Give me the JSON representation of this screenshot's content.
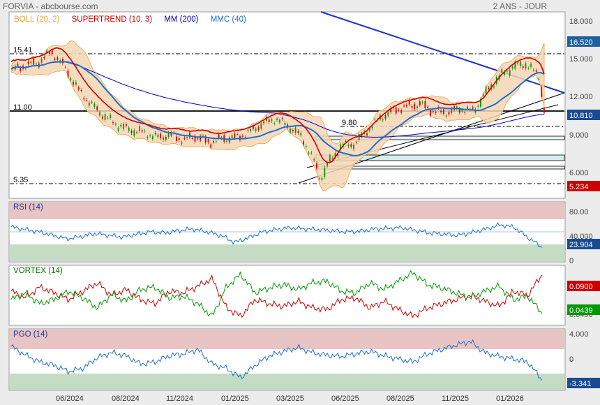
{
  "header": {
    "title": "FORVIA - abcbourse.com",
    "period": "2 ANS - JOUR"
  },
  "legend": {
    "boll": "BOLL (20, 2)",
    "supertrend": "SUPERTREND (10, 3)",
    "mm": "MM (200)",
    "mmc": "MMC (40)"
  },
  "colors": {
    "boll": "#f0a040",
    "supertrend": "#cc0000",
    "mm": "#0000cc",
    "mmc": "#1e6ed0",
    "price_up": "#009900",
    "price_down": "#cc0000",
    "overbought_zone": "#e8c4c4",
    "oversold_zone": "#c4dcc4",
    "badge_blue": "#2060a0",
    "badge_red": "#cc0000",
    "badge_green": "#009900",
    "badge_dark": "#1a4a90"
  },
  "axis": {
    "price_ticks": [
      "18.000",
      "15.000",
      "12.000",
      "9.000",
      "6.000"
    ],
    "rsi_ticks": [
      "80.00",
      "40.000",
      "0"
    ],
    "vortex_ticks": [
      "0.0800",
      "0.0400"
    ],
    "pgo_ticks": [
      "4.000",
      "0"
    ],
    "months": [
      "06/2024",
      "08/2024",
      "11/2024",
      "01/2025",
      "03/2025",
      "06/2025",
      "08/2025",
      "11/2025",
      "01/2026"
    ]
  },
  "levels": {
    "l1541": "15.41",
    "l1100": "11.00",
    "l980": "9.80",
    "l535": "5.35"
  },
  "badges": {
    "high": "16.520",
    "last": "10.810",
    "low": "5.234",
    "rsi": "23.904",
    "vortex_plus": "0.0900",
    "vortex_minus": "0.0439",
    "pgo": "-3.341"
  },
  "panels": {
    "rsi": "RSI (14)",
    "vortex": "VORTEX (14)",
    "pgo": "PGO (14)"
  },
  "chart_data": {
    "type": "line",
    "price": {
      "ylim": [
        4,
        19
      ],
      "points": [
        [
          0,
          14.3
        ],
        [
          5,
          14.7
        ],
        [
          10,
          14.9
        ],
        [
          15,
          15.8
        ],
        [
          20,
          14.6
        ],
        [
          25,
          12.8
        ],
        [
          30,
          11.6
        ],
        [
          35,
          10.6
        ],
        [
          40,
          9.9
        ],
        [
          45,
          9.5
        ],
        [
          50,
          9.3
        ],
        [
          55,
          8.9
        ],
        [
          60,
          9.1
        ],
        [
          65,
          8.7
        ],
        [
          70,
          9.0
        ],
        [
          75,
          8.5
        ],
        [
          80,
          8.8
        ],
        [
          85,
          8.9
        ],
        [
          90,
          9.3
        ],
        [
          95,
          10.0
        ],
        [
          100,
          10.4
        ],
        [
          105,
          9.8
        ],
        [
          110,
          8.9
        ],
        [
          115,
          6.8
        ],
        [
          117,
          5.5
        ],
        [
          120,
          6.8
        ],
        [
          125,
          8.2
        ],
        [
          130,
          8.4
        ],
        [
          135,
          9.5
        ],
        [
          140,
          10.5
        ],
        [
          145,
          11.1
        ],
        [
          150,
          11.4
        ],
        [
          155,
          11.6
        ],
        [
          160,
          11.0
        ],
        [
          165,
          10.9
        ],
        [
          170,
          11.2
        ],
        [
          175,
          11.0
        ],
        [
          180,
          12.6
        ],
        [
          185,
          13.8
        ],
        [
          190,
          14.6
        ],
        [
          195,
          14.8
        ],
        [
          200,
          13.8
        ],
        [
          202,
          10.8
        ]
      ]
    },
    "rsi_values": [
      58,
      54,
      50,
      44,
      38,
      42,
      47,
      44,
      41,
      46,
      50,
      48,
      52,
      55,
      50,
      44,
      32,
      40,
      50,
      54,
      57,
      55,
      54,
      52,
      50,
      51,
      55,
      56,
      57,
      52,
      48,
      46,
      44,
      49,
      55,
      62,
      58,
      40,
      23.9
    ],
    "vortex_plus_values": [
      0.07,
      0.062,
      0.075,
      0.068,
      0.06,
      0.07,
      0.08,
      0.065,
      0.072,
      0.06,
      0.055,
      0.07,
      0.068,
      0.076,
      0.085,
      0.05,
      0.04,
      0.06,
      0.055,
      0.052,
      0.058,
      0.05,
      0.048,
      0.06,
      0.062,
      0.05,
      0.058,
      0.048,
      0.04,
      0.05,
      0.055,
      0.06,
      0.065,
      0.058,
      0.052,
      0.07,
      0.065,
      0.09
    ],
    "vortex_minus_values": [
      0.06,
      0.068,
      0.055,
      0.06,
      0.07,
      0.062,
      0.05,
      0.066,
      0.058,
      0.072,
      0.075,
      0.062,
      0.064,
      0.055,
      0.04,
      0.075,
      0.09,
      0.068,
      0.074,
      0.078,
      0.072,
      0.08,
      0.082,
      0.07,
      0.068,
      0.08,
      0.072,
      0.082,
      0.092,
      0.078,
      0.074,
      0.068,
      0.062,
      0.07,
      0.076,
      0.06,
      0.064,
      0.0439
    ],
    "pgo_values": [
      2.0,
      0.6,
      -0.5,
      -1.0,
      -2.0,
      -1.5,
      0.2,
      1.0,
      0.5,
      -0.8,
      -0.5,
      0.5,
      0.8,
      1.5,
      -0.8,
      -1.5,
      -3.0,
      -1.0,
      0.5,
      1.2,
      1.8,
      1.0,
      0.6,
      0.4,
      0.8,
      1.2,
      0.5,
      0.0,
      -0.5,
      0.8,
      1.5,
      2.2,
      2.8,
      1.0,
      0.4,
      0.0,
      -0.5,
      -3.341
    ]
  }
}
